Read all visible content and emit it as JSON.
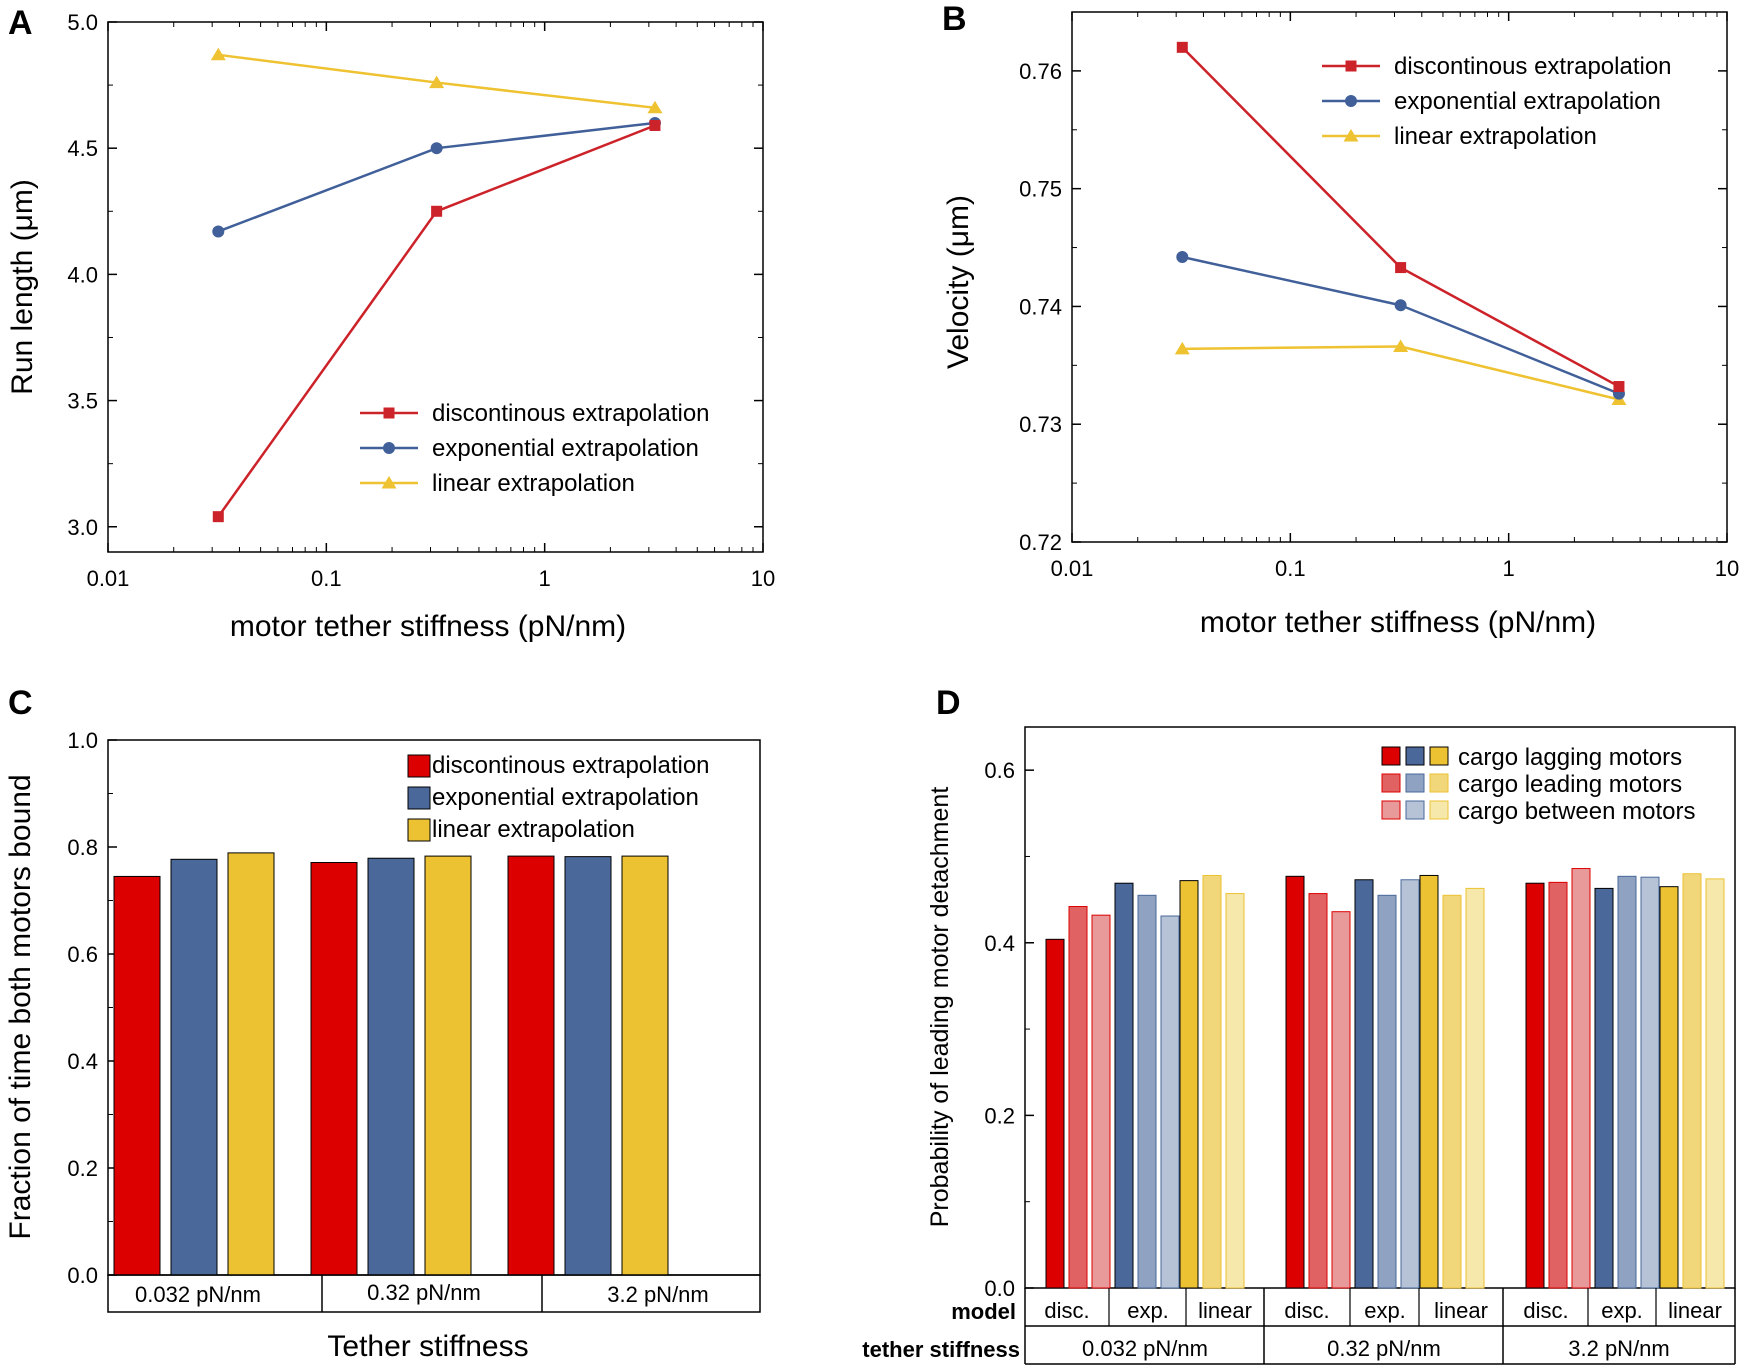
{
  "colors": {
    "disc": "#cc2229",
    "exp": "#41609a",
    "lin": "#eec231",
    "bar_disc": "#dd0000",
    "bar_exp": "#4a6899",
    "bar_lin": "#ecc233",
    "d_disc": [
      "#dd0000",
      "#e06262",
      "#e89a9b"
    ],
    "d_exp": [
      "#4a6899",
      "#8fa2c2",
      "#b6c3d7"
    ],
    "d_lin": [
      "#ecc233",
      "#f1d77a",
      "#f6e8ab"
    ]
  },
  "chart_data": [
    {
      "panel": "A",
      "type": "line",
      "xscale": "log",
      "xlim": [
        0.01,
        10
      ],
      "ylim": [
        2.9,
        5.0
      ],
      "xticks": [
        "0.01",
        "0.1",
        "1",
        "10"
      ],
      "yticks": [
        "3.0",
        "3.5",
        "4.0",
        "4.5",
        "5.0"
      ],
      "xlabel": "motor tether stiffness (pN/nm)",
      "ylabel": "Run length (μm)",
      "legend_position": "bottom-right",
      "x": [
        0.032,
        0.32,
        3.2
      ],
      "series": [
        {
          "name": "discontinous extrapolation",
          "marker": "square",
          "color_key": "disc",
          "values": [
            3.04,
            4.25,
            4.59
          ]
        },
        {
          "name": "exponential extrapolation",
          "marker": "circle",
          "color_key": "exp",
          "values": [
            4.17,
            4.5,
            4.6
          ]
        },
        {
          "name": "linear extrapolation",
          "marker": "triangle",
          "color_key": "lin",
          "values": [
            4.87,
            4.76,
            4.66
          ]
        }
      ]
    },
    {
      "panel": "B",
      "type": "line",
      "xscale": "log",
      "xlim": [
        0.01,
        10
      ],
      "ylim": [
        0.72,
        0.765
      ],
      "xticks": [
        "0.01",
        "0.1",
        "1",
        "10"
      ],
      "yticks": [
        "0.72",
        "0.73",
        "0.74",
        "0.75",
        "0.76"
      ],
      "xlabel": "motor tether stiffness (pN/nm)",
      "ylabel": "Velocity (μm)",
      "legend_position": "top-right",
      "x": [
        0.032,
        0.32,
        3.2
      ],
      "series": [
        {
          "name": "discontinous extrapolation",
          "marker": "square",
          "color_key": "disc",
          "values": [
            0.762,
            0.7433,
            0.7332
          ]
        },
        {
          "name": "exponential extrapolation",
          "marker": "circle",
          "color_key": "exp",
          "values": [
            0.7442,
            0.7401,
            0.7326
          ]
        },
        {
          "name": "linear extrapolation",
          "marker": "triangle",
          "color_key": "lin",
          "values": [
            0.7364,
            0.7366,
            0.7321
          ]
        }
      ]
    },
    {
      "panel": "C",
      "type": "bar",
      "ylim": [
        0,
        1.0
      ],
      "yticks": [
        "0.0",
        "0.2",
        "0.4",
        "0.6",
        "0.8",
        "1.0"
      ],
      "ylabel": "Fraction of time both motors bound",
      "xlabel": "Tether stiffness",
      "legend_position": "top-right",
      "categories": [
        "0.032 pN/nm",
        "0.32 pN/nm",
        "3.2 pN/nm"
      ],
      "series": [
        {
          "name": "discontinous extrapolation",
          "color_key": "bar_disc",
          "values": [
            0.745,
            0.771,
            0.783
          ]
        },
        {
          "name": "exponential extrapolation",
          "color_key": "bar_exp",
          "values": [
            0.777,
            0.779,
            0.782
          ]
        },
        {
          "name": "linear extrapolation",
          "color_key": "bar_lin",
          "values": [
            0.789,
            0.783,
            0.783
          ]
        }
      ]
    },
    {
      "panel": "D",
      "type": "bar",
      "ylim": [
        0,
        0.65
      ],
      "yticks": [
        "0.0",
        "0.2",
        "0.4",
        "0.6"
      ],
      "ylabel": "Probability of leading motor detachment",
      "row_label_model": "model",
      "row_label_stiffness": "tether stiffness",
      "legend_position": "top-right",
      "stiffness_groups": [
        "0.032 pN/nm",
        "0.32 pN/nm",
        "3.2 pN/nm"
      ],
      "models": [
        "disc.",
        "exp.",
        "linear"
      ],
      "legend": [
        "cargo lagging motors",
        "cargo leading motors",
        "cargo between motors"
      ],
      "values": [
        [
          [
            0.404,
            0.442,
            0.432
          ],
          [
            0.469,
            0.455,
            0.431
          ],
          [
            0.472,
            0.478,
            0.457
          ]
        ],
        [
          [
            0.477,
            0.457,
            0.436
          ],
          [
            0.473,
            0.455,
            0.473
          ],
          [
            0.478,
            0.455,
            0.463
          ]
        ],
        [
          [
            0.469,
            0.47,
            0.486
          ],
          [
            0.463,
            0.477,
            0.476
          ],
          [
            0.465,
            0.48,
            0.474
          ]
        ]
      ]
    }
  ]
}
